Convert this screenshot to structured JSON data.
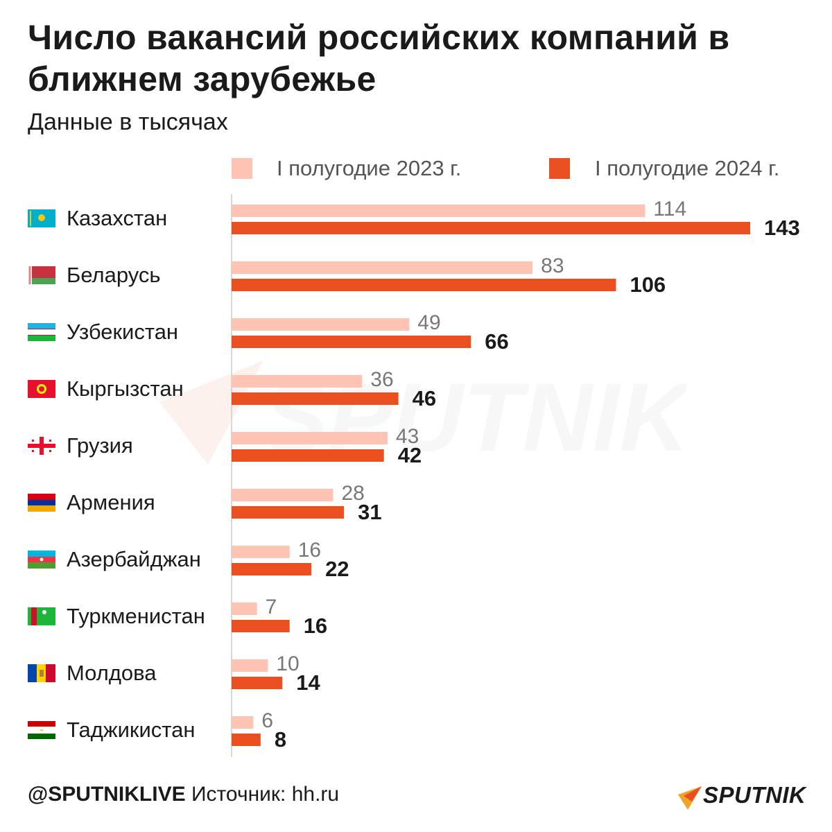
{
  "title": "Число вакансий российских компаний в ближнем зарубежье",
  "subtitle": "Данные в тысячах",
  "colors": {
    "series_2023": "#ffc3b3",
    "series_2024": "#e94f1f",
    "axis": "#cccccc",
    "label_2023": "#777777",
    "label_2024": "#1a1a1a"
  },
  "legend": [
    {
      "label": "I полугодие 2023 г.",
      "color": "#ffc3b3"
    },
    {
      "label": "I полугодие 2024 г.",
      "color": "#e94f1f"
    }
  ],
  "chart_data": {
    "type": "bar",
    "orientation": "horizontal",
    "categories": [
      "Казахстан",
      "Беларусь",
      "Узбекистан",
      "Кыргызстан",
      "Грузия",
      "Армения",
      "Азербайджан",
      "Туркменистан",
      "Молдова",
      "Таджикистан"
    ],
    "flags": [
      "flag-kz-icon",
      "flag-by-icon",
      "flag-uz-icon",
      "flag-kg-icon",
      "flag-ge-icon",
      "flag-am-icon",
      "flag-az-icon",
      "flag-tm-icon",
      "flag-md-icon",
      "flag-tj-icon"
    ],
    "series": [
      {
        "name": "I полугодие 2023 г.",
        "values": [
          114,
          83,
          49,
          36,
          43,
          28,
          16,
          7,
          10,
          6
        ]
      },
      {
        "name": "I полугодие 2024 г.",
        "values": [
          143,
          106,
          66,
          46,
          42,
          31,
          22,
          16,
          14,
          8
        ]
      }
    ],
    "xlim": [
      0,
      143
    ],
    "legend_position": "top",
    "grid": false,
    "data_labels": true
  },
  "footer": {
    "handle": "@SPUTNIKLIVE",
    "source": "Источник: hh.ru",
    "brand": "SPUTNIK"
  },
  "watermark": "SPUTNIK"
}
